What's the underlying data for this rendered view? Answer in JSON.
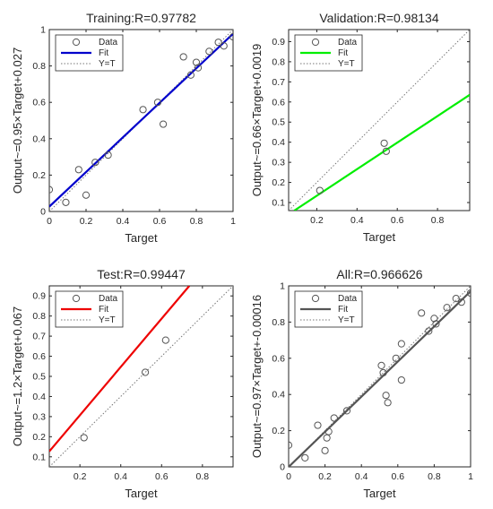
{
  "chart_data": [
    {
      "type": "scatter",
      "title": "Training:R=0.97782",
      "xlabel": "Target",
      "ylabel": "Output~=0.95×Target+0.027",
      "xlim": [
        0,
        1
      ],
      "ylim": [
        0,
        1
      ],
      "xticks": [
        "0",
        "0.2",
        "0.4",
        "0.6",
        "0.8",
        "1"
      ],
      "yticks": [
        "0",
        "0.2",
        "0.4",
        "0.6",
        "0.8",
        "1"
      ],
      "grid": false,
      "legend_placement": "top-left",
      "fit": {
        "slope": 0.95,
        "intercept": 0.027,
        "color": "#0000cc"
      },
      "series": [
        {
          "name": "Data",
          "x": [
            0.0,
            0.09,
            0.16,
            0.2,
            0.25,
            0.32,
            0.51,
            0.59,
            0.62,
            0.73,
            0.77,
            0.8,
            0.81,
            0.87,
            0.92,
            0.95,
            1.0
          ],
          "y": [
            0.12,
            0.05,
            0.23,
            0.09,
            0.27,
            0.31,
            0.56,
            0.6,
            0.48,
            0.85,
            0.75,
            0.82,
            0.79,
            0.88,
            0.93,
            0.91,
            0.96
          ]
        },
        {
          "name": "Fit"
        },
        {
          "name": "Y=T"
        }
      ]
    },
    {
      "type": "scatter",
      "title": "Validation:R=0.98134",
      "xlabel": "Target",
      "ylabel": "Output~=0.66×Target+0.0019",
      "xlim": [
        0.06,
        0.96
      ],
      "ylim": [
        0.06,
        0.96
      ],
      "xticks": [
        "0.2",
        "0.4",
        "0.6",
        "0.8"
      ],
      "yticks": [
        "0.1",
        "0.2",
        "0.3",
        "0.4",
        "0.5",
        "0.6",
        "0.7",
        "0.8",
        "0.9"
      ],
      "grid": false,
      "legend_placement": "top-left",
      "fit": {
        "slope": 0.66,
        "intercept": 0.0019,
        "color": "#00ee00"
      },
      "series": [
        {
          "name": "Data",
          "x": [
            0.215,
            0.535,
            0.545
          ],
          "y": [
            0.16,
            0.395,
            0.355
          ]
        },
        {
          "name": "Fit"
        },
        {
          "name": "Y=T"
        }
      ]
    },
    {
      "type": "scatter",
      "title": "Test:R=0.99447",
      "xlabel": "Target",
      "ylabel": "Output~=1.2×Target+0.067",
      "xlim": [
        0.05,
        0.95
      ],
      "ylim": [
        0.05,
        0.95
      ],
      "xticks": [
        "0.2",
        "0.4",
        "0.6",
        "0.8"
      ],
      "yticks": [
        "0.1",
        "0.2",
        "0.3",
        "0.4",
        "0.5",
        "0.6",
        "0.7",
        "0.8",
        "0.9"
      ],
      "grid": false,
      "legend_placement": "top-left",
      "fit": {
        "slope": 1.2,
        "intercept": 0.067,
        "color": "#ee0000"
      },
      "series": [
        {
          "name": "Data",
          "x": [
            0.22,
            0.52,
            0.62
          ],
          "y": [
            0.195,
            0.52,
            0.68
          ]
        },
        {
          "name": "Fit"
        },
        {
          "name": "Y=T"
        }
      ]
    },
    {
      "type": "scatter",
      "title": "All:R=0.966626",
      "xlabel": "Target",
      "ylabel": "Output~=0.97×Target+-0.00016",
      "xlim": [
        0,
        1
      ],
      "ylim": [
        0,
        1
      ],
      "xticks": [
        "0",
        "0.2",
        "0.4",
        "0.6",
        "0.8",
        "1"
      ],
      "yticks": [
        "0",
        "0.2",
        "0.4",
        "0.6",
        "0.8",
        "1"
      ],
      "grid": false,
      "legend_placement": "top-left",
      "fit": {
        "slope": 0.97,
        "intercept": -0.00016,
        "color": "#555555"
      },
      "series": [
        {
          "name": "Data",
          "x": [
            0.0,
            0.09,
            0.16,
            0.2,
            0.21,
            0.22,
            0.25,
            0.32,
            0.51,
            0.52,
            0.535,
            0.545,
            0.59,
            0.62,
            0.62,
            0.73,
            0.77,
            0.8,
            0.81,
            0.87,
            0.92,
            0.95,
            1.0
          ],
          "y": [
            0.12,
            0.05,
            0.23,
            0.09,
            0.16,
            0.195,
            0.27,
            0.31,
            0.56,
            0.52,
            0.395,
            0.355,
            0.6,
            0.48,
            0.68,
            0.85,
            0.75,
            0.82,
            0.79,
            0.88,
            0.93,
            0.91,
            0.96
          ]
        },
        {
          "name": "Fit"
        },
        {
          "name": "Y=T"
        }
      ]
    }
  ]
}
